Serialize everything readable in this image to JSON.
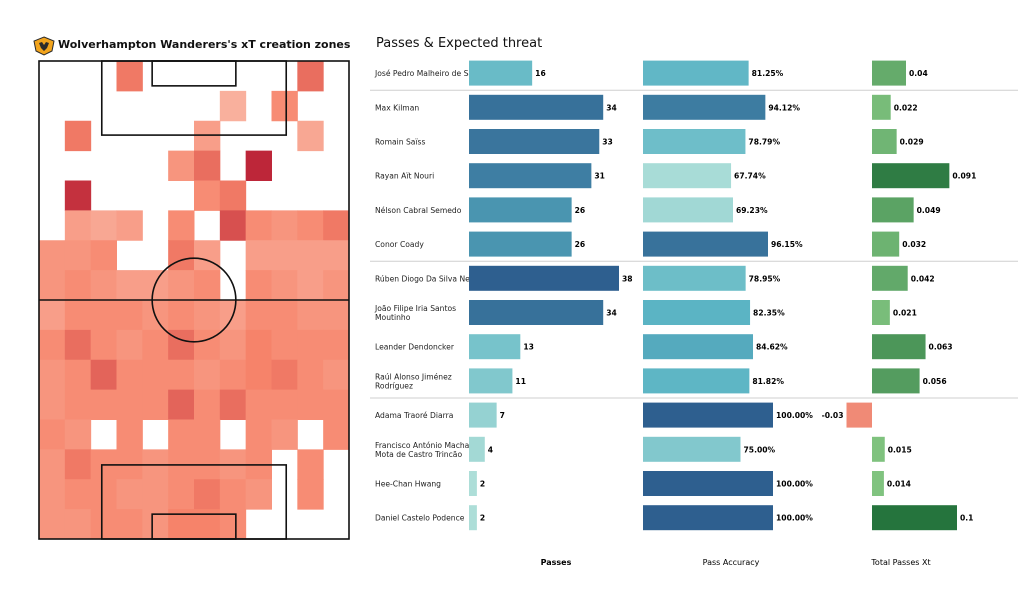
{
  "header": {
    "heatmap_title": "Wolverhampton Wanderers's xT creation zones",
    "table_title": "Passes & Expected threat",
    "badge_icon": "wolf-crest-icon"
  },
  "chart_data": [
    {
      "type": "heatmap",
      "title": "Wolverhampton Wanderers's xT creation zones",
      "grid_columns": 12,
      "grid_rows": 16,
      "scale": "xT intensity 0-1 (estimated)",
      "colors": {
        "low": "#fbdcd0",
        "mid": "#f6836a",
        "high": "#b71c33"
      },
      "cells": [
        [
          0,
          0,
          0,
          0.55,
          0,
          0,
          0,
          0,
          0,
          0,
          0.6,
          0
        ],
        [
          0,
          0,
          0,
          0,
          0,
          0,
          0,
          0.25,
          0,
          0.45,
          0,
          0
        ],
        [
          0,
          0.55,
          0,
          0,
          0,
          0,
          0.35,
          0,
          0,
          0,
          0.3,
          0
        ],
        [
          0,
          0,
          0,
          0,
          0,
          0.4,
          0.6,
          0,
          0.95,
          0,
          0,
          0
        ],
        [
          0,
          0.9,
          0,
          0,
          0,
          0,
          0.45,
          0.55,
          0,
          0,
          0,
          0
        ],
        [
          0,
          0.35,
          0.3,
          0.35,
          0,
          0.45,
          0,
          0.75,
          0.45,
          0.4,
          0.45,
          0.55
        ],
        [
          0.4,
          0.4,
          0.45,
          0,
          0,
          0.55,
          0.35,
          0,
          0.35,
          0.35,
          0.35,
          0.35
        ],
        [
          0.4,
          0.45,
          0.4,
          0.35,
          0.35,
          0.4,
          0.45,
          0,
          0.45,
          0.4,
          0.35,
          0.4
        ],
        [
          0.35,
          0.45,
          0.45,
          0.45,
          0.4,
          0.45,
          0.4,
          0.35,
          0.45,
          0.45,
          0.4,
          0.4
        ],
        [
          0.45,
          0.6,
          0.45,
          0.4,
          0.45,
          0.6,
          0.45,
          0.4,
          0.5,
          0.45,
          0.45,
          0.45
        ],
        [
          0.4,
          0.45,
          0.65,
          0.45,
          0.45,
          0.45,
          0.4,
          0.45,
          0.5,
          0.55,
          0.45,
          0.4
        ],
        [
          0.4,
          0.45,
          0.45,
          0.45,
          0.45,
          0.65,
          0.45,
          0.6,
          0.45,
          0.45,
          0.45,
          0.45
        ],
        [
          0.45,
          0.4,
          0,
          0.45,
          0,
          0.45,
          0.45,
          0,
          0.45,
          0.4,
          0,
          0.45
        ],
        [
          0.4,
          0.55,
          0.45,
          0.45,
          0.4,
          0.45,
          0.45,
          0.4,
          0.45,
          0,
          0.45,
          0
        ],
        [
          0.4,
          0.45,
          0.45,
          0.4,
          0.4,
          0.45,
          0.55,
          0.45,
          0.4,
          0,
          0.45,
          0
        ],
        [
          0.4,
          0.4,
          0.45,
          0.45,
          0.4,
          0.5,
          0.5,
          0.45,
          0,
          0,
          0,
          0
        ]
      ]
    },
    {
      "type": "bar",
      "title": "Passes & Expected threat",
      "categories": [
        "José Pedro Malheiro de Sá",
        "Max Kilman",
        "Romain Saïss",
        "Rayan Aït Nouri",
        "Nélson Cabral Semedo",
        "Conor  Coady",
        "Rúben Diogo Da Silva Neves",
        "João Filipe Iria Santos Moutinho",
        "Leander Dendoncker",
        "Raúl Alonso Jiménez Rodríguez",
        "Adama Traoré Diarra",
        "Francisco António Machado Mota de Castro Trincão",
        "Hee-Chan Hwang",
        "Daniel Castelo Podence"
      ],
      "group_separators_after_index": [
        0,
        5,
        9
      ],
      "series": [
        {
          "name": "Passes",
          "values": [
            16,
            34,
            33,
            31,
            26,
            26,
            38,
            34,
            13,
            11,
            7,
            4,
            2,
            2
          ],
          "labels": [
            "16",
            "34",
            "33",
            "31",
            "26",
            "26",
            "38",
            "34",
            "13",
            "11",
            "7",
            "4",
            "2",
            "2"
          ],
          "max": 38
        },
        {
          "name": "Pass Accuracy",
          "values": [
            81.25,
            94.12,
            78.79,
            67.74,
            69.23,
            96.15,
            78.95,
            82.35,
            84.62,
            81.82,
            100,
            75,
            100,
            100
          ],
          "labels": [
            "81.25%",
            "94.12%",
            "78.79%",
            "67.74%",
            "69.23%",
            "96.15%",
            "78.95%",
            "82.35%",
            "84.62%",
            "81.82%",
            "100.00%",
            "75.00%",
            "100.00%",
            "100.00%"
          ],
          "max": 100
        },
        {
          "name": "Total Passes Xt",
          "values": [
            0.04,
            0.022,
            0.029,
            0.091,
            0.049,
            0.032,
            0.042,
            0.021,
            0.063,
            0.056,
            -0.03,
            0.015,
            0.014,
            0.1
          ],
          "labels": [
            "0.04",
            "0.022",
            "0.029",
            "0.091",
            "0.049",
            "0.032",
            "0.042",
            "0.021",
            "0.063",
            "0.056",
            "-0.03",
            "0.015",
            "0.014",
            "0.1"
          ],
          "max": 0.1
        }
      ],
      "colors": {
        "blue_low": "#b7e3da",
        "blue_mid": "#5ab4c4",
        "blue_high": "#2e5f8f",
        "green_low": "#8fd08a",
        "green_high": "#25743d",
        "negative": "#f08a76",
        "separator": "#cfcfcf"
      },
      "legend": "none"
    }
  ]
}
